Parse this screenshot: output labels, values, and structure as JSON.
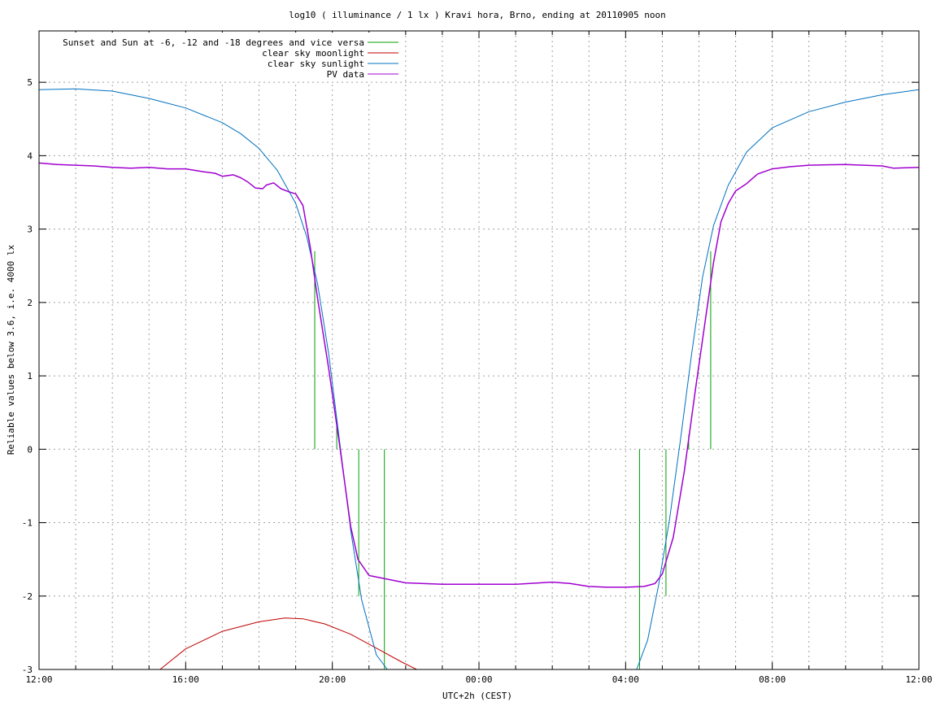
{
  "chart_data": {
    "type": "line",
    "title": "log10 ( illuminance / 1 lx ) Kravi hora, Brno, ending at 20110905 noon",
    "xlabel": "UTC+2h (CEST)",
    "ylabel": "Reliable values below 3.6, i.e. 4000 lx",
    "x_unit": "hours since 12:00 UTC+2h",
    "xlim": [
      0,
      24
    ],
    "ylim": [
      -3,
      5.7
    ],
    "x_ticks": [
      {
        "value": 0,
        "label": "12:00"
      },
      {
        "value": 4,
        "label": "16:00"
      },
      {
        "value": 8,
        "label": "20:00"
      },
      {
        "value": 12,
        "label": "00:00"
      },
      {
        "value": 16,
        "label": "04:00"
      },
      {
        "value": 20,
        "label": "08:00"
      },
      {
        "value": 24,
        "label": "12:00"
      }
    ],
    "y_ticks": [
      {
        "value": -3,
        "label": "-3"
      },
      {
        "value": -2,
        "label": "-2"
      },
      {
        "value": -1,
        "label": "-1"
      },
      {
        "value": 0,
        "label": "0"
      },
      {
        "value": 1,
        "label": "1"
      },
      {
        "value": 2,
        "label": "2"
      },
      {
        "value": 3,
        "label": "3"
      },
      {
        "value": 4,
        "label": "4"
      },
      {
        "value": 5,
        "label": "5"
      }
    ],
    "grid": true,
    "legend_position": "top-left",
    "series": [
      {
        "name": "Sunset and Sun at -6, -12 and -18 degrees and vice versa",
        "color": "#00a000",
        "style": "impulses",
        "points": [
          {
            "x": 7.52,
            "y": 2.7
          },
          {
            "x": 8.12,
            "y": 0.4
          },
          {
            "x": 8.72,
            "y": -2.0
          },
          {
            "x": 9.42,
            "y": -3.0
          },
          {
            "x": 16.38,
            "y": -3.0
          },
          {
            "x": 17.1,
            "y": -2.0
          },
          {
            "x": 17.72,
            "y": 0.2
          },
          {
            "x": 18.32,
            "y": 2.7
          }
        ]
      },
      {
        "name": "clear sky moonlight",
        "color": "#c00000",
        "style": "line",
        "x": [
          3.3,
          4.0,
          5.0,
          6.0,
          6.7,
          7.2,
          7.8,
          8.5,
          9.2,
          9.9,
          10.3
        ],
        "y": [
          -3.0,
          -2.72,
          -2.48,
          -2.35,
          -2.3,
          -2.31,
          -2.38,
          -2.52,
          -2.71,
          -2.9,
          -3.0
        ]
      },
      {
        "name": "clear sky sunlight",
        "color": "#0070c0",
        "style": "line",
        "x": [
          0,
          1.0,
          2.0,
          3.0,
          4.0,
          5.0,
          5.5,
          6.0,
          6.5,
          7.0,
          7.3,
          7.6,
          7.9,
          8.2,
          8.5,
          8.8,
          9.2,
          9.5,
          16.3,
          16.6,
          16.9,
          17.2,
          17.5,
          17.8,
          18.1,
          18.4,
          18.8,
          19.3,
          20.0,
          21.0,
          22.0,
          23.0,
          24.0
        ],
        "y": [
          4.9,
          4.91,
          4.88,
          4.78,
          4.65,
          4.45,
          4.3,
          4.1,
          3.8,
          3.35,
          2.9,
          2.25,
          1.3,
          0.1,
          -1.1,
          -2.05,
          -2.8,
          -3.0,
          -3.0,
          -2.6,
          -1.85,
          -0.95,
          0.15,
          1.3,
          2.35,
          3.05,
          3.6,
          4.05,
          4.38,
          4.6,
          4.73,
          4.83,
          4.9
        ]
      },
      {
        "name": "PV data",
        "color": "#a000d0",
        "style": "line",
        "x": [
          0,
          0.5,
          1.0,
          1.5,
          2.0,
          2.5,
          3.0,
          3.5,
          4.0,
          4.5,
          4.8,
          5.0,
          5.3,
          5.5,
          5.7,
          5.9,
          6.1,
          6.2,
          6.4,
          6.6,
          6.8,
          7.0,
          7.2,
          7.4,
          7.6,
          7.9,
          8.2,
          8.5,
          8.7,
          9.0,
          9.5,
          10.0,
          11.0,
          12.0,
          13.0,
          14.0,
          14.5,
          15.0,
          15.5,
          16.0,
          16.5,
          16.8,
          17.0,
          17.3,
          17.6,
          17.9,
          18.2,
          18.4,
          18.6,
          18.8,
          19.0,
          19.3,
          19.6,
          20.0,
          20.5,
          21.0,
          22.0,
          23.0,
          23.3,
          24.0
        ],
        "y": [
          3.9,
          3.88,
          3.87,
          3.86,
          3.84,
          3.83,
          3.84,
          3.82,
          3.82,
          3.78,
          3.76,
          3.72,
          3.74,
          3.7,
          3.64,
          3.56,
          3.55,
          3.6,
          3.63,
          3.55,
          3.51,
          3.48,
          3.32,
          2.75,
          2.05,
          1.1,
          0.05,
          -1.05,
          -1.5,
          -1.72,
          -1.77,
          -1.82,
          -1.84,
          -1.84,
          -1.84,
          -1.81,
          -1.83,
          -1.87,
          -1.88,
          -1.88,
          -1.87,
          -1.83,
          -1.7,
          -1.2,
          -0.3,
          0.8,
          1.85,
          2.55,
          3.1,
          3.35,
          3.52,
          3.62,
          3.75,
          3.82,
          3.85,
          3.87,
          3.88,
          3.86,
          3.83,
          3.84
        ]
      }
    ]
  }
}
